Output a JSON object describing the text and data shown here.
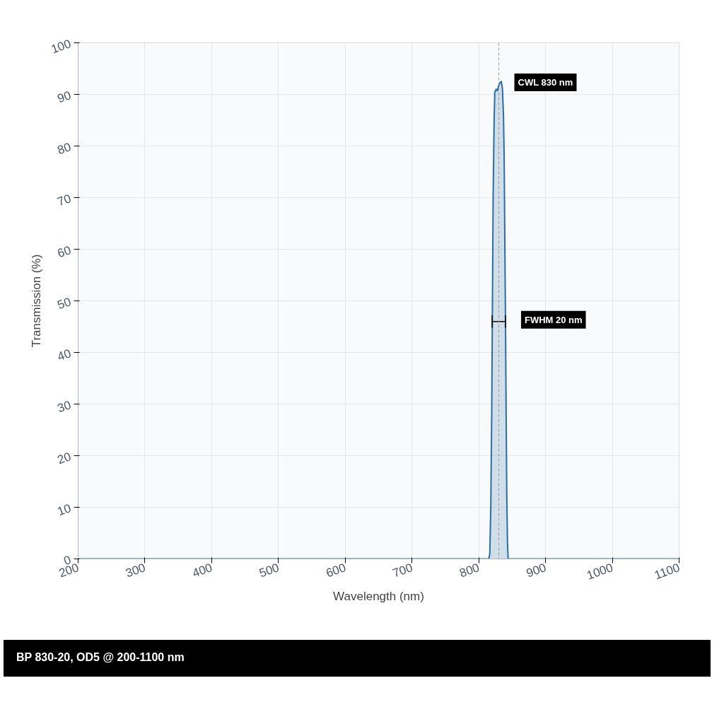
{
  "chart_data": {
    "type": "area",
    "xlabel": "Wavelength (nm)",
    "ylabel": "Transmission (%)",
    "xlim": [
      200,
      1100
    ],
    "xticks": [
      200,
      300,
      400,
      500,
      600,
      700,
      800,
      900,
      1000,
      1100
    ],
    "ylim": [
      0,
      100
    ],
    "yticks": [
      0,
      10,
      20,
      30,
      40,
      50,
      60,
      70,
      80,
      90,
      100
    ],
    "grid": true,
    "series": [
      {
        "type": "area",
        "color": "#2b6ea6",
        "x": [
          200,
          815,
          816.5,
          818,
          819.5,
          820.5,
          821.5,
          823,
          824,
          826,
          827.8,
          830,
          832,
          833.8,
          835.5,
          837,
          838,
          839,
          840,
          841,
          842,
          843,
          844,
          1100
        ],
        "values": [
          0,
          0,
          1,
          10,
          30,
          50,
          70,
          85,
          90.5,
          91,
          90.7,
          91.8,
          92.3,
          92.5,
          91,
          86,
          78,
          62,
          46,
          28,
          12,
          3,
          0,
          0
        ]
      },
      {
        "type": "scatter",
        "color": "#000000",
        "x": [
          830
        ],
        "values": [
          46
        ],
        "xerrors": [
          10
        ]
      }
    ],
    "ref_lines": [
      {
        "axis": "x",
        "value": 830,
        "color": "#999999",
        "line_style": "dashed"
      }
    ],
    "annotations": [
      {
        "text": "CWL 830 nm",
        "x": 830,
        "y": 92
      },
      {
        "text": "FWHM 20 nm",
        "x": 840,
        "y": 46
      },
      "BP 830-20, OD5 @ 200-1100 nm"
    ]
  }
}
